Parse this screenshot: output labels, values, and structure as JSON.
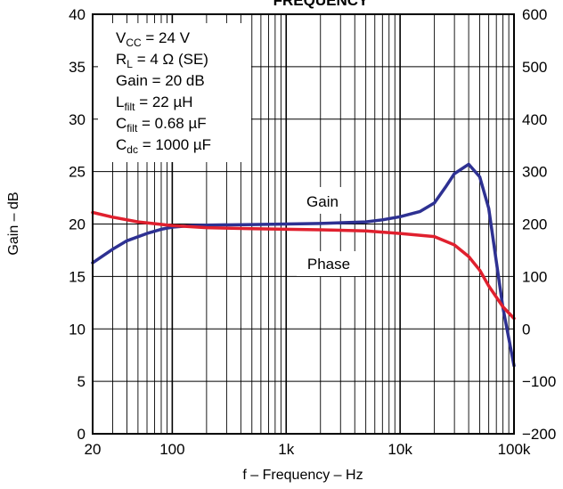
{
  "chart_data": {
    "type": "line",
    "title": "FREQUENCY",
    "xlabel": "f – Frequency – Hz",
    "ylabel": "Gain – dB",
    "x_scale": "log",
    "xlim": [
      20,
      100000
    ],
    "ylim": [
      0,
      40
    ],
    "y2lim": [
      -200,
      600
    ],
    "grid": true,
    "x_tick_values": [
      20,
      100,
      1000,
      10000,
      100000
    ],
    "x_tick_labels": [
      "20",
      "100",
      "1k",
      "10k",
      "100k"
    ],
    "y_tick_labels": [
      "0",
      "5",
      "10",
      "15",
      "20",
      "25",
      "30",
      "35",
      "40"
    ],
    "y2_tick_labels": [
      "−200",
      "−100",
      "0",
      "100",
      "200",
      "300",
      "400",
      "500",
      "600"
    ],
    "annotations": {
      "vcc": {
        "main": "V",
        "sub": "CC",
        "rest": " = 24 V"
      },
      "rl": {
        "main": "R",
        "sub": "L",
        "rest": " = 4 Ω (SE)"
      },
      "gain": {
        "main": "Gain = 20 dB",
        "sub": "",
        "rest": ""
      },
      "lfilt": {
        "main": "L",
        "sub": "filt",
        "rest": " = 22 µH"
      },
      "cfilt": {
        "main": "C",
        "sub": "filt",
        "rest": " = 0.68 µF"
      },
      "cdc": {
        "main": "C",
        "sub": "dc",
        "rest": " = 1000 µF"
      }
    },
    "series": [
      {
        "name": "Gain",
        "axis": "left",
        "color": "#2e3192",
        "x": [
          20,
          30,
          40,
          60,
          80,
          100,
          150,
          200,
          500,
          1000,
          2000,
          5000,
          7000,
          10000,
          15000,
          20000,
          25000,
          30000,
          40000,
          50000,
          60000,
          80000,
          100000
        ],
        "y": [
          16.3,
          17.6,
          18.4,
          19.1,
          19.5,
          19.7,
          19.85,
          19.9,
          19.95,
          20.0,
          20.05,
          20.2,
          20.4,
          20.7,
          21.2,
          22.0,
          23.5,
          24.8,
          25.7,
          24.5,
          21.5,
          12.0,
          6.5
        ]
      },
      {
        "name": "Phase",
        "axis": "right",
        "color": "#e0202e",
        "x": [
          20,
          30,
          50,
          100,
          200,
          500,
          1000,
          2000,
          5000,
          10000,
          20000,
          30000,
          40000,
          50000,
          60000,
          80000,
          100000
        ],
        "y": [
          222,
          213,
          204,
          197,
          193,
          191,
          190,
          189,
          187,
          182,
          176,
          160,
          138,
          112,
          82,
          42,
          20
        ]
      }
    ],
    "series_labels": [
      "Gain",
      "Phase"
    ]
  }
}
